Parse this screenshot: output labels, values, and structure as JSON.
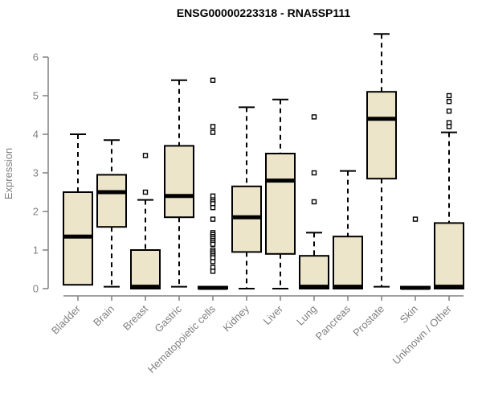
{
  "chart_data": {
    "type": "boxplot",
    "title": "ENSG00000223318 - RNA5SP111",
    "xlabel": "",
    "ylabel": "Expression",
    "ylim": [
      0,
      6.8
    ],
    "yticks": [
      0,
      1,
      2,
      3,
      4,
      5,
      6
    ],
    "grid": false,
    "legend": "none",
    "categories": [
      "Bladder",
      "Brain",
      "Breast",
      "Gastric",
      "Hematopoietic cells",
      "Kidney",
      "Liver",
      "Lung",
      "Pancreas",
      "Prostate",
      "Skin",
      "Unknown / Other"
    ],
    "series": [
      {
        "category": "Bladder",
        "min": 0.1,
        "q1": 0.1,
        "median": 1.35,
        "q3": 2.5,
        "max": 4.0,
        "outliers": []
      },
      {
        "category": "Brain",
        "min": 0.05,
        "q1": 1.6,
        "median": 2.5,
        "q3": 2.95,
        "max": 3.85,
        "outliers": []
      },
      {
        "category": "Breast",
        "min": 0,
        "q1": 0,
        "median": 0.05,
        "q3": 1.0,
        "max": 2.3,
        "outliers": [
          2.5,
          3.45
        ]
      },
      {
        "category": "Gastric",
        "min": 0.05,
        "q1": 1.85,
        "median": 2.4,
        "q3": 3.7,
        "max": 5.4,
        "outliers": []
      },
      {
        "category": "Hematopoietic cells",
        "min": 0,
        "q1": 0,
        "median": 0.02,
        "q3": 0.05,
        "max": 0.05,
        "outliers": [
          5.4,
          4.2,
          4.05,
          2.4,
          2.3,
          2.25,
          2.2,
          2.1,
          1.8,
          1.45,
          1.4,
          1.35,
          1.3,
          1.25,
          1.2,
          1.15,
          1.0,
          0.95,
          0.9,
          0.85,
          0.8,
          0.7,
          0.55,
          0.45
        ]
      },
      {
        "category": "Kidney",
        "min": 0,
        "q1": 0.95,
        "median": 1.85,
        "q3": 2.65,
        "max": 4.7,
        "outliers": []
      },
      {
        "category": "Liver",
        "min": 0,
        "q1": 0.9,
        "median": 2.8,
        "q3": 3.5,
        "max": 4.9,
        "outliers": []
      },
      {
        "category": "Lung",
        "min": 0,
        "q1": 0,
        "median": 0.05,
        "q3": 0.85,
        "max": 1.45,
        "outliers": [
          4.45,
          3.0,
          2.25
        ]
      },
      {
        "category": "Pancreas",
        "min": 0,
        "q1": 0,
        "median": 0.05,
        "q3": 1.35,
        "max": 3.05,
        "outliers": []
      },
      {
        "category": "Prostate",
        "min": 0.05,
        "q1": 2.85,
        "median": 4.4,
        "q3": 5.1,
        "max": 6.6,
        "outliers": []
      },
      {
        "category": "Skin",
        "min": 0,
        "q1": 0,
        "median": 0.02,
        "q3": 0.05,
        "max": 0.05,
        "outliers": [
          1.8
        ]
      },
      {
        "category": "Unknown / Other",
        "min": 0,
        "q1": 0,
        "median": 0.05,
        "q3": 1.7,
        "max": 4.05,
        "outliers": [
          5.0,
          4.85,
          4.6,
          4.3,
          4.2
        ]
      }
    ],
    "colors": {
      "box_fill": "#ece5c9",
      "box_stroke": "#000000",
      "median": "#000000",
      "whisker": "#000000",
      "outlier_stroke": "#000000",
      "axis": "#808080",
      "tick_text": "#808080",
      "title_text": "#000000"
    }
  }
}
